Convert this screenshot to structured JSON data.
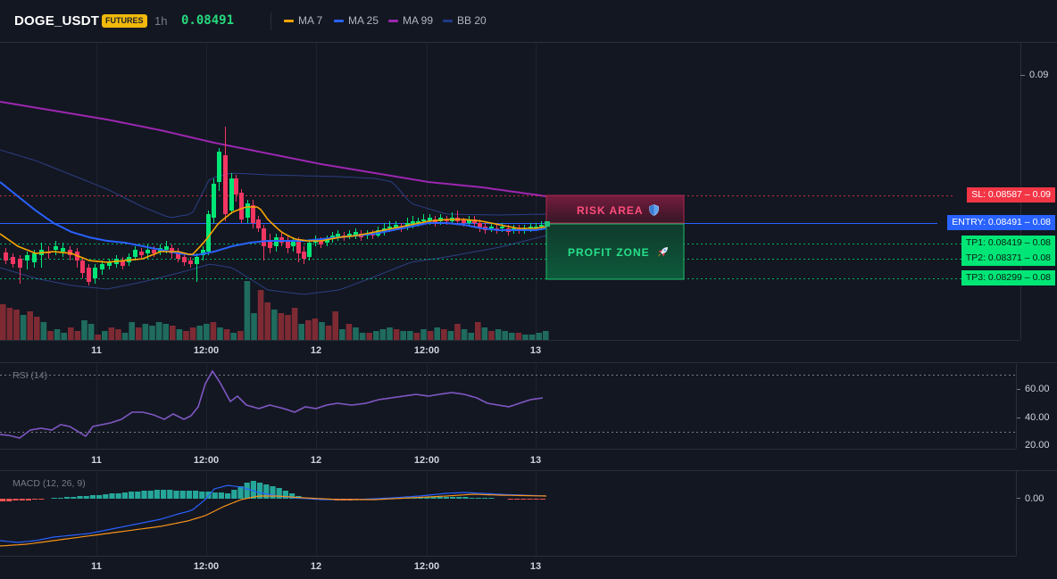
{
  "header": {
    "symbol": "DOGE_USDT",
    "badge": "FUTURES",
    "timeframe": "1h",
    "last_price": "0.08491",
    "indicators": [
      {
        "label": "MA 7",
        "color": "#f7a600"
      },
      {
        "label": "MA 25",
        "color": "#2962ff"
      },
      {
        "label": "MA 99",
        "color": "#9c27b0"
      },
      {
        "label": "BB 20",
        "color": "#1e3a8a"
      }
    ]
  },
  "main_chart": {
    "y_axis_label": "0.09",
    "risk_label": "RISK AREA",
    "profit_label": "PROFIT ZONE",
    "levels": [
      {
        "id": "sl",
        "text": "SL: 0.08587",
        "value": "0.09",
        "color": "#f23645",
        "text_color": "#ffffff"
      },
      {
        "id": "entry",
        "text": "ENTRY: 0.08491",
        "value": "0.08",
        "color": "#2962ff",
        "text_color": "#ffffff"
      },
      {
        "id": "tp1",
        "text": "TP1: 0.08419",
        "value": "0.08",
        "color": "#00e676",
        "text_color": "#0b1a10"
      },
      {
        "id": "tp2",
        "text": "TP2: 0.08371",
        "value": "0.08",
        "color": "#00e676",
        "text_color": "#0b1a10"
      },
      {
        "id": "tp3",
        "text": "TP3: 0.08299",
        "value": "0.08",
        "color": "#00e676",
        "text_color": "#0b1a10"
      }
    ]
  },
  "x_axis_labels": [
    "11",
    "12:00",
    "12",
    "12:00",
    "13"
  ],
  "rsi_panel": {
    "name": "RSI (14)",
    "ticks": [
      "60.00",
      "40.00",
      "20.00"
    ]
  },
  "macd_panel": {
    "name": "MACD (12, 26, 9)",
    "ticks": [
      "0.00"
    ]
  },
  "colors": {
    "up": "#26a69a",
    "down": "#ef5350",
    "bull_candle": "#00e676",
    "bear_candle": "#f23662",
    "rsi_line": "#7e57c2"
  }
}
